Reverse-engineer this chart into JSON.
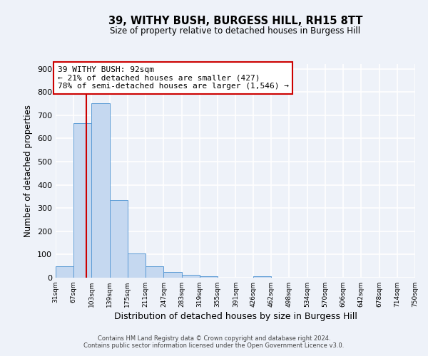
{
  "title": "39, WITHY BUSH, BURGESS HILL, RH15 8TT",
  "subtitle": "Size of property relative to detached houses in Burgess Hill",
  "xlabel": "Distribution of detached houses by size in Burgess Hill",
  "ylabel": "Number of detached properties",
  "bin_edges": [
    31,
    67,
    103,
    139,
    175,
    211,
    247,
    283,
    319,
    355,
    391,
    426,
    462,
    498,
    534,
    570,
    606,
    642,
    678,
    714,
    750
  ],
  "bin_labels": [
    "31sqm",
    "67sqm",
    "103sqm",
    "139sqm",
    "175sqm",
    "211sqm",
    "247sqm",
    "283sqm",
    "319sqm",
    "355sqm",
    "391sqm",
    "426sqm",
    "462sqm",
    "498sqm",
    "534sqm",
    "570sqm",
    "606sqm",
    "642sqm",
    "678sqm",
    "714sqm",
    "750sqm"
  ],
  "bar_heights": [
    50,
    665,
    750,
    335,
    105,
    50,
    25,
    12,
    5,
    0,
    0,
    5,
    0,
    0,
    0,
    0,
    0,
    0,
    0,
    0
  ],
  "bar_color": "#c5d8f0",
  "bar_edge_color": "#5b9bd5",
  "property_value": 92,
  "property_line_color": "#cc0000",
  "annotation_title": "39 WITHY BUSH: 92sqm",
  "annotation_line1": "← 21% of detached houses are smaller (427)",
  "annotation_line2": "78% of semi-detached houses are larger (1,546) →",
  "annotation_box_color": "#ffffff",
  "annotation_box_edge": "#cc0000",
  "ylim": [
    0,
    920
  ],
  "yticks": [
    0,
    100,
    200,
    300,
    400,
    500,
    600,
    700,
    800,
    900
  ],
  "footer_line1": "Contains HM Land Registry data © Crown copyright and database right 2024.",
  "footer_line2": "Contains public sector information licensed under the Open Government Licence v3.0.",
  "background_color": "#eef2f9",
  "grid_color": "#ffffff"
}
